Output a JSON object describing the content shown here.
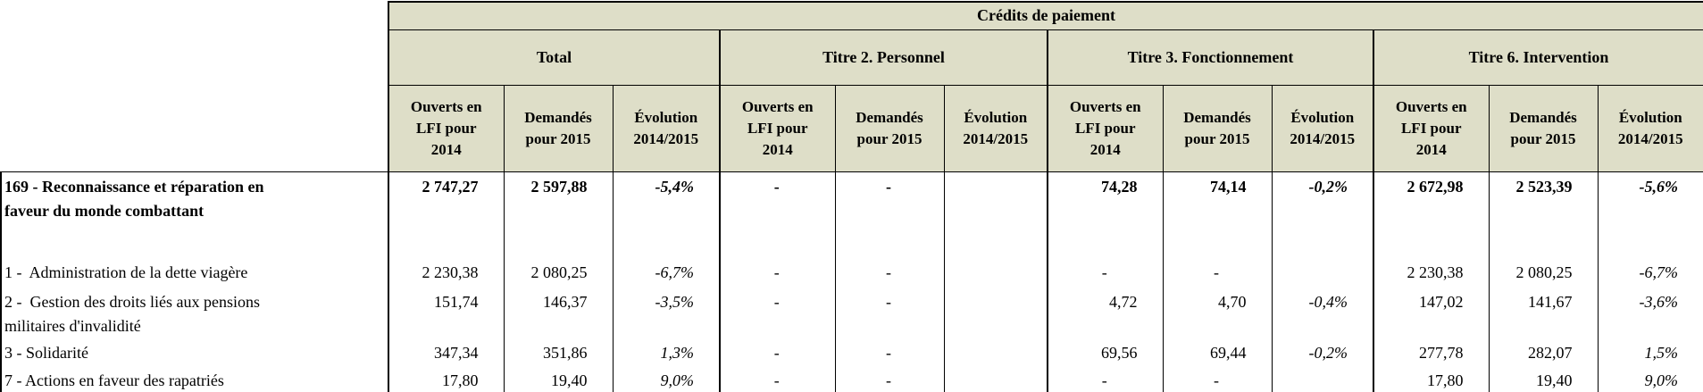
{
  "header": {
    "title": "Crédits de paiement",
    "groups": [
      {
        "label": "Total"
      },
      {
        "label": "Titre 2. Personnel"
      },
      {
        "label": "Titre 3. Fonctionnement"
      },
      {
        "label": "Titre 6. Intervention"
      }
    ],
    "columns": [
      "Ouverts en\nLFI pour\n2014",
      "Demandés\npour 2015",
      "Évolution\n2014/2015"
    ]
  },
  "colors": {
    "header_background": "#dedec8",
    "border": "#000000",
    "data_background": "#ffffff"
  },
  "table": {
    "rows": [
      {
        "label": "169 - Reconnaissance et réparation en\nfaveur du monde combattant",
        "bold": true,
        "values": [
          "2 747,27",
          "2 597,88",
          "-5,4%",
          "-",
          "-",
          "",
          "74,28",
          "74,14",
          "-0,2%",
          "2 672,98",
          "2 523,39",
          "-5,6%"
        ]
      },
      {
        "label": "1 -  Administration de la dette viagère",
        "bold": false,
        "values": [
          "2 230,38",
          "2 080,25",
          "-6,7%",
          "-",
          "-",
          "",
          "-",
          "-",
          "",
          "2 230,38",
          "2 080,25",
          "-6,7%"
        ]
      },
      {
        "label": "2 -  Gestion des droits liés aux pensions\nmilitaires d'invalidité",
        "bold": false,
        "values": [
          "151,74",
          "146,37",
          "-3,5%",
          "-",
          "-",
          "",
          "4,72",
          "4,70",
          "-0,4%",
          "147,02",
          "141,67",
          "-3,6%"
        ]
      },
      {
        "label": "3 - Solidarité",
        "bold": false,
        "values": [
          "347,34",
          "351,86",
          "1,3%",
          "-",
          "-",
          "",
          "69,56",
          "69,44",
          "-0,2%",
          "277,78",
          "282,07",
          "1,5%"
        ]
      },
      {
        "label": "7 - Actions en faveur des rapatriés",
        "bold": false,
        "values": [
          "17,80",
          "19,40",
          "9,0%",
          "-",
          "-",
          "",
          "-",
          "-",
          "",
          "17,80",
          "19,40",
          "9,0%"
        ]
      }
    ]
  }
}
